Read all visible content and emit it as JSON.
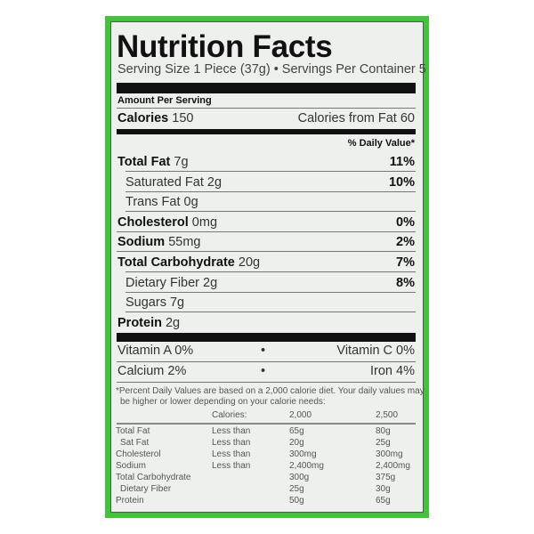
{
  "title": "Nutrition Facts",
  "serving": "Serving Size 1 Piece (37g) • Servings Per Container 5",
  "amount_per_serving": "Amount Per Serving",
  "calories": {
    "label": "Calories",
    "value": "150",
    "from_fat": "Calories from Fat 60"
  },
  "dv_header": "% Daily Value*",
  "nutrients": [
    {
      "label": "Total Fat",
      "amount": "7g",
      "dv": "11%",
      "bold": true,
      "indent": false
    },
    {
      "label": "Saturated Fat",
      "amount": "2g",
      "dv": "10%",
      "bold": false,
      "indent": true
    },
    {
      "label": "Trans Fat",
      "amount": "0g",
      "dv": "",
      "bold": false,
      "indent": true
    },
    {
      "label": "Cholesterol",
      "amount": "0mg",
      "dv": "0%",
      "bold": true,
      "indent": false
    },
    {
      "label": "Sodium",
      "amount": "55mg",
      "dv": "2%",
      "bold": true,
      "indent": false
    },
    {
      "label": "Total Carbohydrate",
      "amount": "20g",
      "dv": "7%",
      "bold": true,
      "indent": false
    },
    {
      "label": "Dietary Fiber",
      "amount": "2g",
      "dv": "8%",
      "bold": false,
      "indent": true
    },
    {
      "label": "Sugars",
      "amount": "7g",
      "dv": "",
      "bold": false,
      "indent": true
    },
    {
      "label": "Protein",
      "amount": "2g",
      "dv": "",
      "bold": true,
      "indent": false
    }
  ],
  "vitamins": [
    {
      "left": "Vitamin A 0%",
      "right": "Vitamin C 0%"
    },
    {
      "left": "Calcium 2%",
      "right": "Iron 4%"
    }
  ],
  "footnote": [
    "*Percent Daily Values are based on a 2,000 calorie diet. Your daily values may",
    "be higher or lower depending on your calorie needs:"
  ],
  "footer_header": {
    "label": "Calories:",
    "c1": "2,000",
    "c2": "2,500"
  },
  "footer_rows": [
    {
      "name": "Total Fat",
      "limit": "Less than",
      "c1": "65g",
      "c2": "80g"
    },
    {
      "name": "Sat Fat",
      "limit": "Less than",
      "c1": "20g",
      "c2": "25g"
    },
    {
      "name": "Cholesterol",
      "limit": "Less than",
      "c1": "300mg",
      "c2": "300mg"
    },
    {
      "name": "Sodium",
      "limit": "Less than",
      "c1": "2,400mg",
      "c2": "2,400mg"
    },
    {
      "name": "Total Carbohydrate",
      "limit": "",
      "c1": "300g",
      "c2": "375g"
    },
    {
      "name": "Dietary Fiber",
      "limit": "",
      "c1": "25g",
      "c2": "30g"
    },
    {
      "name": "Protein",
      "limit": "",
      "c1": "50g",
      "c2": "65g"
    }
  ],
  "colors": {
    "border": "#3fc43a",
    "panel": "#eef0ee"
  }
}
